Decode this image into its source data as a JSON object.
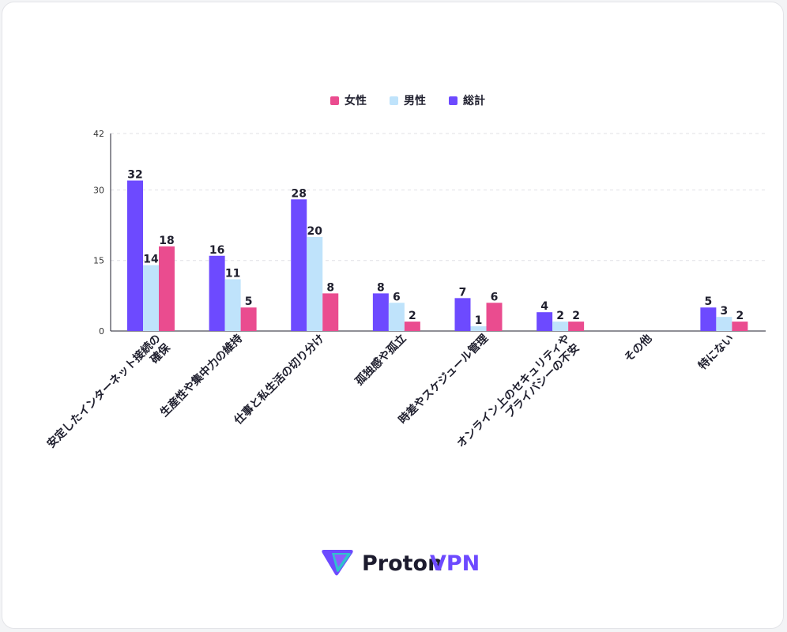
{
  "chart_data": {
    "type": "bar",
    "categories": [
      "安定したインターネット接続の\n確保",
      "生産性や集中力の維持",
      "仕事と私生活の切り分け",
      "孤独感や孤立",
      "時差やスケジュール管理",
      "オンライン上のセキュリティや\nプライバシーの不安",
      "その他",
      "特にない"
    ],
    "series": [
      {
        "name": "総計",
        "values": [
          32,
          16,
          28,
          8,
          7,
          4,
          null,
          5
        ],
        "color": "#6d4aff"
      },
      {
        "name": "男性",
        "values": [
          14,
          11,
          20,
          6,
          1,
          2,
          null,
          3
        ],
        "color": "#bfe3fb"
      },
      {
        "name": "女性",
        "values": [
          18,
          5,
          8,
          2,
          6,
          2,
          null,
          2
        ],
        "color": "#ea4c8f"
      }
    ],
    "legend_order": [
      "女性",
      "男性",
      "総計"
    ],
    "legend_position": "top-center",
    "yticks": [
      0,
      15,
      30,
      42
    ],
    "ylim": [
      0,
      42
    ],
    "grid": true,
    "title": "",
    "xlabel": "",
    "ylabel": ""
  },
  "brand": {
    "logo_text_1": "Proton",
    "logo_text_2": "VPN",
    "logo_color": "#1c1b2e",
    "accent": "#6d4aff"
  }
}
